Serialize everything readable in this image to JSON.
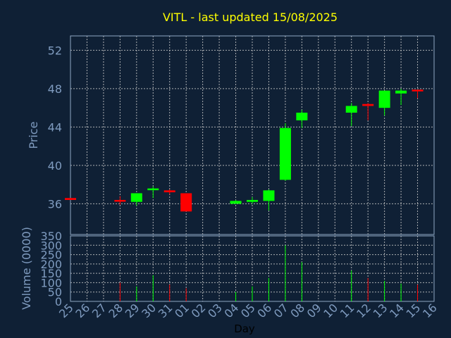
{
  "chart_data": {
    "type": "candlestick",
    "title": "VITL - last updated 15/08/2025",
    "xlabel": "Day",
    "price_axis": {
      "label": "Price",
      "ylim": [
        32.8,
        53.5
      ],
      "ticks": [
        "36",
        "40",
        "44",
        "48",
        "52"
      ]
    },
    "volume_axis": {
      "label": "Volume (0000)",
      "ylim": [
        0,
        350
      ],
      "ticks": [
        "0",
        "50",
        "100",
        "150",
        "200",
        "250",
        "300",
        "350"
      ]
    },
    "grid": true,
    "colors": {
      "up": "#00ff00",
      "down": "#ff0000",
      "grid": "#c8c8c8",
      "title": "#ffff00",
      "text": "#7f9bbf",
      "background": "#0f2035"
    },
    "days": [
      "25",
      "26",
      "27",
      "28",
      "29",
      "30",
      "31",
      "01",
      "02",
      "03",
      "04",
      "05",
      "06",
      "07",
      "08",
      "09",
      "10",
      "11",
      "12",
      "13",
      "14",
      "15",
      "16"
    ],
    "candles": [
      {
        "day": "25",
        "open": 36.6,
        "close": 36.4,
        "high": 36.6,
        "low": 36.4,
        "volume": 0
      },
      {
        "day": "28",
        "open": 36.4,
        "close": 36.3,
        "high": 36.8,
        "low": 35.9,
        "volume": 100
      },
      {
        "day": "29",
        "open": 36.2,
        "close": 37.1,
        "high": 37.1,
        "low": 35.8,
        "volume": 80
      },
      {
        "day": "30",
        "open": 37.5,
        "close": 37.6,
        "high": 37.8,
        "low": 36.6,
        "volume": 140
      },
      {
        "day": "31",
        "open": 37.4,
        "close": 37.2,
        "high": 37.5,
        "low": 37.0,
        "volume": 90
      },
      {
        "day": "01",
        "open": 37.1,
        "close": 35.2,
        "high": 37.1,
        "low": 35.2,
        "volume": 70
      },
      {
        "day": "04",
        "open": 36.0,
        "close": 36.3,
        "high": 36.4,
        "low": 36.0,
        "volume": 50
      },
      {
        "day": "05",
        "open": 36.2,
        "close": 36.4,
        "high": 36.7,
        "low": 36.0,
        "volume": 80
      },
      {
        "day": "06",
        "open": 36.3,
        "close": 37.4,
        "high": 37.5,
        "low": 35.3,
        "volume": 125
      },
      {
        "day": "07",
        "open": 38.5,
        "close": 43.9,
        "high": 44.4,
        "low": 38.4,
        "volume": 300
      },
      {
        "day": "08",
        "open": 44.7,
        "close": 45.5,
        "high": 45.8,
        "low": 43.9,
        "volume": 210
      },
      {
        "day": "11",
        "open": 45.5,
        "close": 46.2,
        "high": 46.5,
        "low": 44.1,
        "volume": 165
      },
      {
        "day": "12",
        "open": 46.4,
        "close": 46.2,
        "high": 46.5,
        "low": 44.7,
        "volume": 125
      },
      {
        "day": "13",
        "open": 46.0,
        "close": 47.8,
        "high": 47.8,
        "low": 45.2,
        "volume": 110
      },
      {
        "day": "14",
        "open": 47.5,
        "close": 47.8,
        "high": 48.0,
        "low": 46.3,
        "volume": 95
      },
      {
        "day": "15",
        "open": 47.9,
        "close": 47.8,
        "high": 47.9,
        "low": 47.0,
        "volume": 90
      }
    ]
  }
}
